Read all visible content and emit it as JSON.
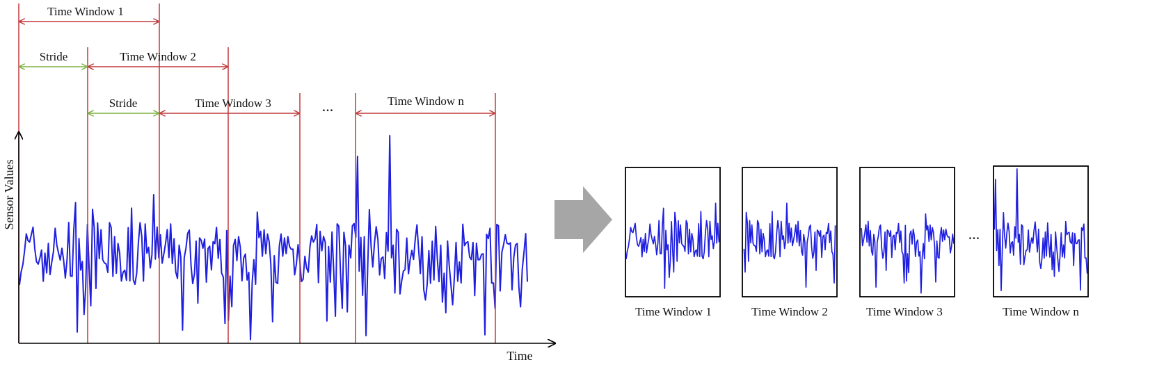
{
  "diagram": {
    "y_axis_label": "Sensor Values",
    "x_axis_label": "Time",
    "window_labels": [
      "Time Window 1",
      "Time Window 2",
      "Time Window 3",
      "Time Window n"
    ],
    "stride_label": "Stride",
    "ellipsis": "...",
    "thumbnail_captions": [
      "Time Window 1",
      "Time Window 2",
      "Time Window 3",
      "Time Window n"
    ],
    "colors": {
      "signal": "#1f1fe0",
      "window_marker": "#c0393b",
      "stride_marker": "#7db13f",
      "arrow": "#a6a6a6",
      "axis": "#000000"
    }
  }
}
